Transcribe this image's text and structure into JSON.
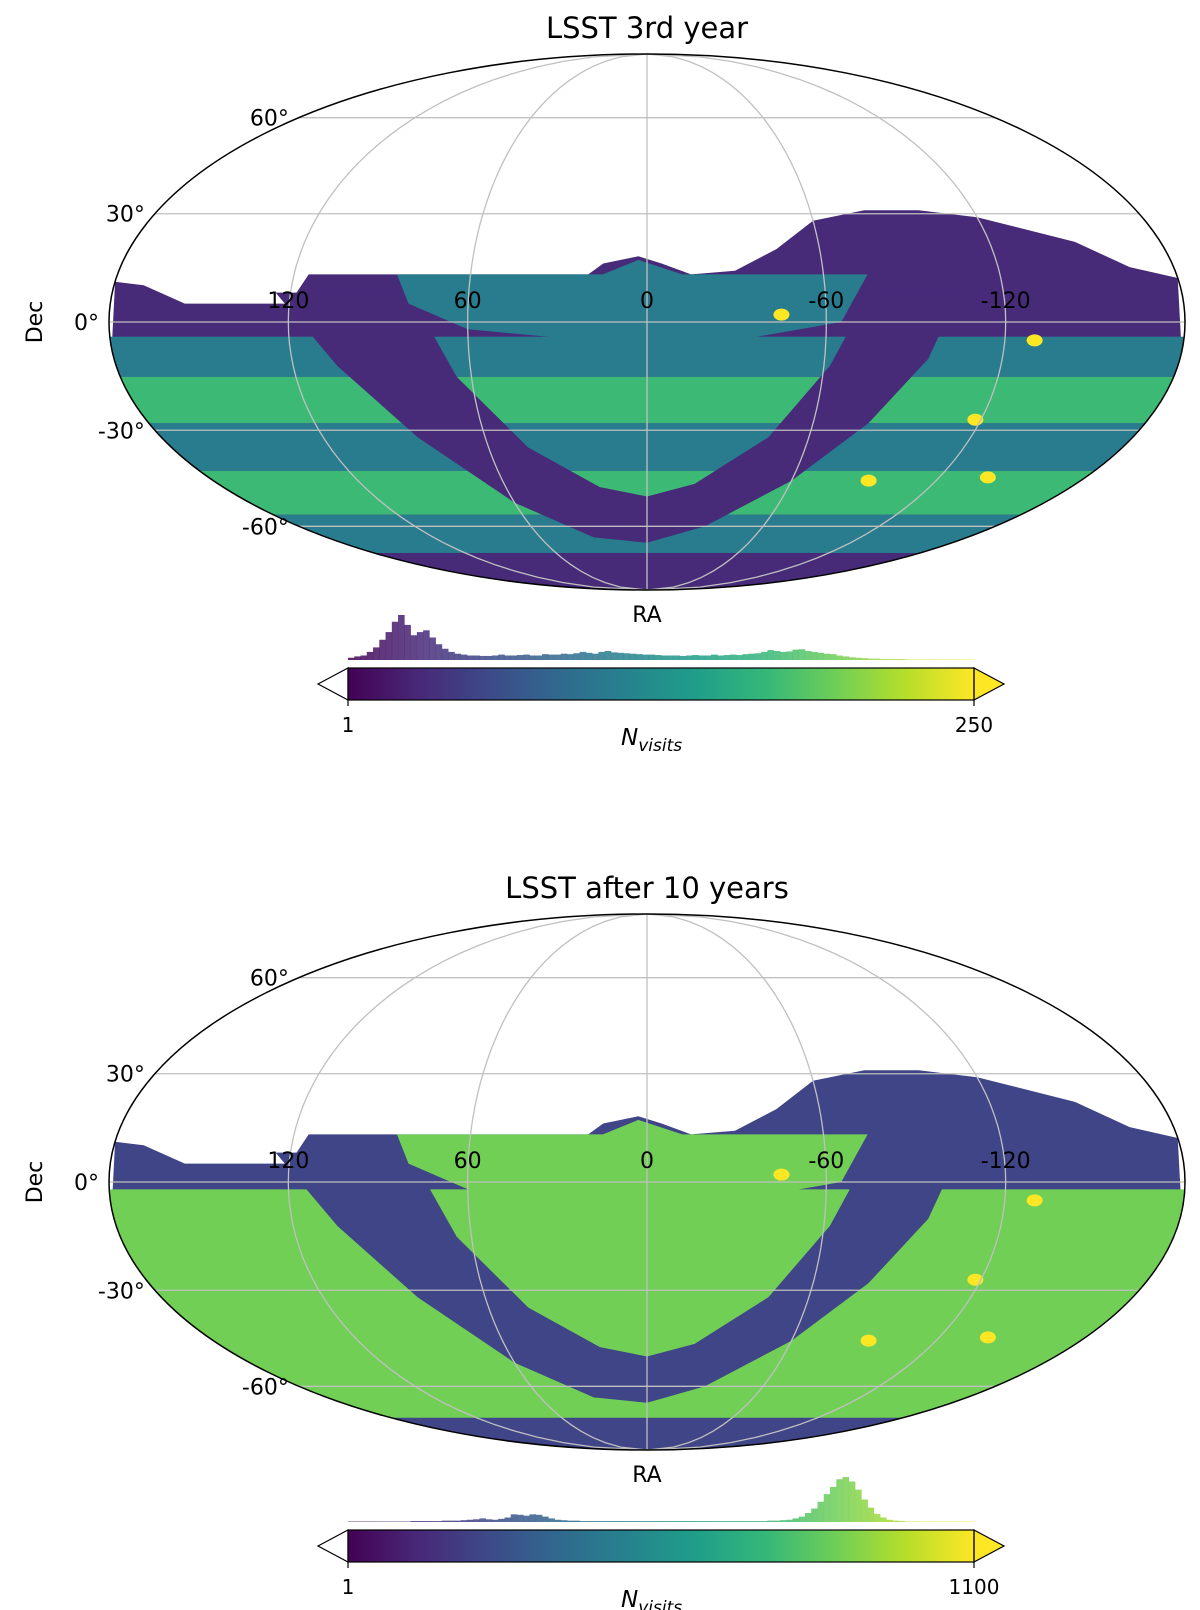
{
  "chart_data": [
    {
      "type": "heatmap",
      "projection": "mollweide",
      "title": "LSST 3rd year",
      "xlabel": "RA",
      "ylabel": "Dec",
      "ra_ticks": [
        "120",
        "60",
        "0",
        "-60",
        "-120"
      ],
      "dec_ticks": [
        "60°",
        "30°",
        "0°",
        "-30°",
        "-60°"
      ],
      "colorbar": {
        "label": "N",
        "label_sub": "visits",
        "min_label": "1",
        "max_label": "250",
        "vmin": 1,
        "vmax": 250,
        "colormap": "viridis",
        "extend": "both"
      },
      "histogram": [
        0.05,
        0.08,
        0.1,
        0.18,
        0.28,
        0.45,
        0.62,
        0.85,
        1.0,
        0.78,
        0.55,
        0.62,
        0.66,
        0.5,
        0.35,
        0.25,
        0.18,
        0.14,
        0.12,
        0.1,
        0.1,
        0.09,
        0.09,
        0.1,
        0.12,
        0.1,
        0.1,
        0.11,
        0.12,
        0.1,
        0.1,
        0.13,
        0.12,
        0.12,
        0.14,
        0.13,
        0.15,
        0.18,
        0.16,
        0.14,
        0.18,
        0.2,
        0.17,
        0.16,
        0.15,
        0.14,
        0.13,
        0.12,
        0.12,
        0.11,
        0.1,
        0.1,
        0.1,
        0.09,
        0.1,
        0.11,
        0.1,
        0.1,
        0.12,
        0.1,
        0.11,
        0.12,
        0.11,
        0.13,
        0.14,
        0.15,
        0.18,
        0.22,
        0.2,
        0.18,
        0.19,
        0.23,
        0.24,
        0.2,
        0.18,
        0.16,
        0.14,
        0.13,
        0.1,
        0.08,
        0.06,
        0.05,
        0.04,
        0.03,
        0.03,
        0.02,
        0.02,
        0.02,
        0.02,
        0.01,
        0.01,
        0.01,
        0.01,
        0.01,
        0.01,
        0.01,
        0.01,
        0.01,
        0.01,
        0.01
      ],
      "levels": {
        "low": 30,
        "mid": 105,
        "high": 170,
        "peak": 250
      }
    },
    {
      "type": "heatmap",
      "projection": "mollweide",
      "title": "LSST after 10 years",
      "xlabel": "RA",
      "ylabel": "Dec",
      "ra_ticks": [
        "120",
        "60",
        "0",
        "-60",
        "-120"
      ],
      "dec_ticks": [
        "60°",
        "30°",
        "0°",
        "-30°",
        "-60°"
      ],
      "colorbar": {
        "label": "N",
        "label_sub": "visits",
        "min_label": "1",
        "max_label": "1100",
        "vmin": 1,
        "vmax": 1100,
        "colormap": "viridis",
        "extend": "both"
      },
      "histogram": [
        0.01,
        0.01,
        0.01,
        0.01,
        0.01,
        0.01,
        0.01,
        0.01,
        0.01,
        0.01,
        0.02,
        0.02,
        0.02,
        0.02,
        0.02,
        0.03,
        0.03,
        0.03,
        0.04,
        0.05,
        0.06,
        0.08,
        0.06,
        0.05,
        0.07,
        0.1,
        0.17,
        0.16,
        0.14,
        0.17,
        0.16,
        0.12,
        0.08,
        0.05,
        0.04,
        0.03,
        0.03,
        0.02,
        0.02,
        0.02,
        0.02,
        0.02,
        0.02,
        0.02,
        0.02,
        0.02,
        0.02,
        0.02,
        0.02,
        0.02,
        0.02,
        0.02,
        0.02,
        0.02,
        0.02,
        0.02,
        0.02,
        0.02,
        0.02,
        0.02,
        0.02,
        0.02,
        0.02,
        0.02,
        0.02,
        0.02,
        0.02,
        0.03,
        0.03,
        0.04,
        0.05,
        0.08,
        0.12,
        0.2,
        0.3,
        0.45,
        0.62,
        0.78,
        0.95,
        1.0,
        0.9,
        0.72,
        0.5,
        0.32,
        0.18,
        0.1,
        0.05,
        0.03,
        0.02,
        0.01,
        0.01,
        0.01,
        0.01,
        0.01,
        0.01,
        0.01,
        0.01,
        0.01,
        0.01,
        0.01
      ],
      "levels": {
        "low": 230,
        "mid": 520,
        "high": 860,
        "peak": 1100
      }
    }
  ]
}
